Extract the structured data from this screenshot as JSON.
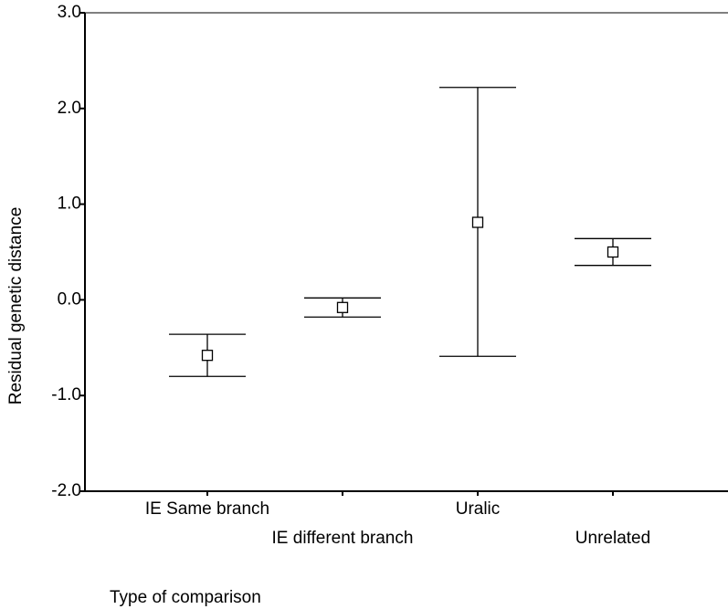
{
  "chart_data": {
    "type": "errorbar",
    "ylabel": "Residual genetic distance",
    "xlabel": "Type of comparison",
    "categories": [
      "IE Same branch",
      "IE different branch",
      "Uralic",
      "Unrelated"
    ],
    "values": [
      -0.58,
      -0.08,
      0.81,
      0.5
    ],
    "upper": [
      -0.36,
      0.02,
      2.22,
      0.64
    ],
    "lower": [
      -0.8,
      -0.18,
      -0.59,
      0.36
    ],
    "color": "#000000",
    "ylim": [
      -2,
      3
    ],
    "yticks": [
      {
        "value": -2,
        "label": "-2.0"
      },
      {
        "value": -1,
        "label": "-1.0"
      },
      {
        "value": 0,
        "label": "0.0"
      },
      {
        "value": 1,
        "label": "1.0"
      },
      {
        "value": 2,
        "label": "2.0"
      },
      {
        "value": 3,
        "label": "3.0"
      }
    ],
    "grid": false
  }
}
